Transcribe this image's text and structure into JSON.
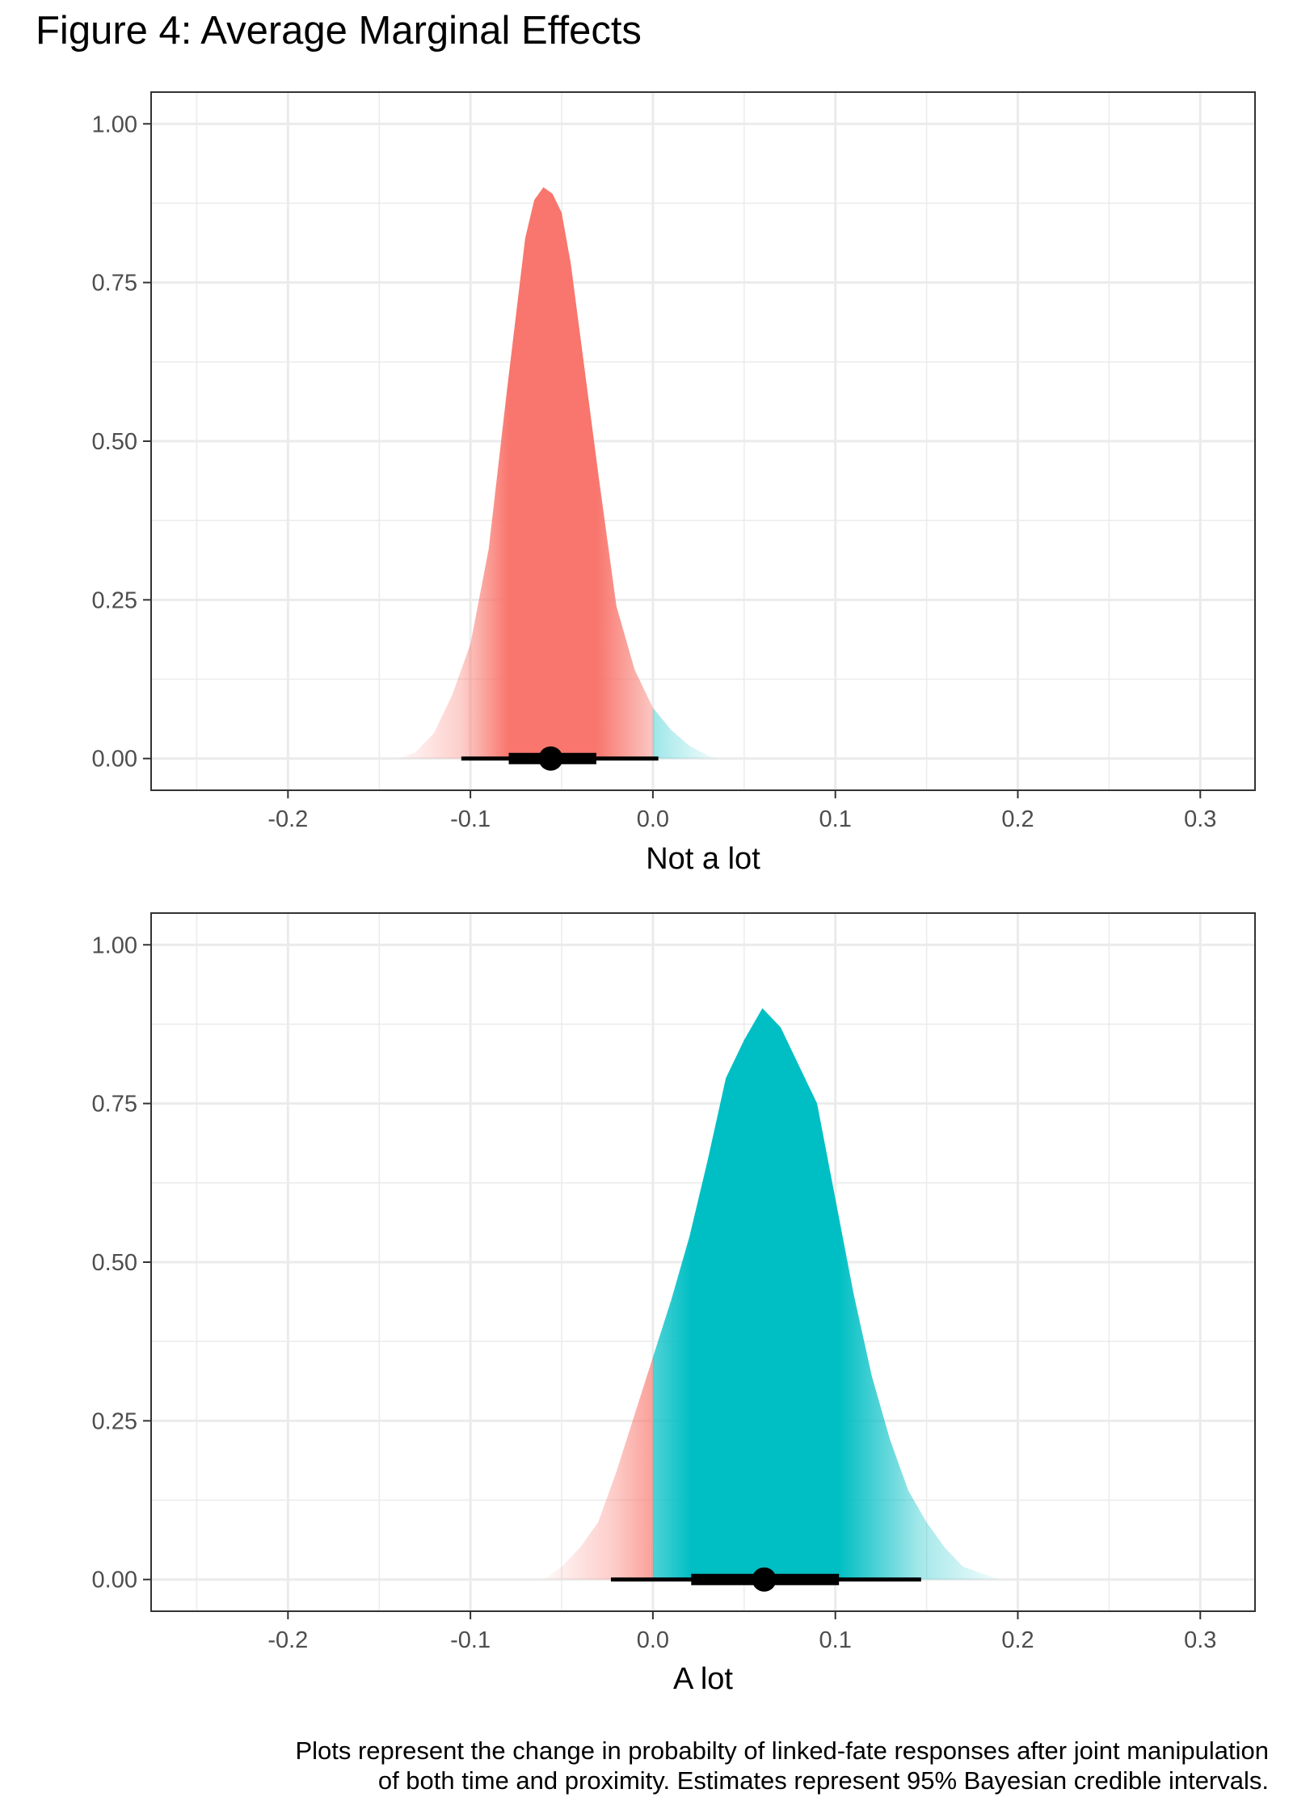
{
  "title": "Figure 4: Average Marginal Effects",
  "caption": {
    "line1": "Plots represent the change in probabilty of linked-fate responses after joint manipulation",
    "line2": "of both time and proximity. Estimates represent 95% Bayesian credible intervals."
  },
  "colors": {
    "negative": "#F8766D",
    "positive": "#00BFC4",
    "grid": "#ebebeb",
    "panel_border": "#333333"
  },
  "chart_data": [
    {
      "type": "area",
      "chart_kind": "posterior-density-halfeye",
      "xlabel": "Not a lot",
      "ylabel": "",
      "xlim": [
        -0.275,
        0.33
      ],
      "ylim": [
        -0.05,
        1.05
      ],
      "x_ticks": [
        -0.2,
        -0.1,
        0.0,
        0.1,
        0.2,
        0.3
      ],
      "x_tick_labels": [
        "-0.2",
        "-0.1",
        "0.0",
        "0.1",
        "0.2",
        "0.3"
      ],
      "y_ticks": [
        0,
        0.25,
        0.5,
        0.75,
        1.0
      ],
      "y_tick_labels": [
        "0.00",
        "0.25",
        "0.50",
        "0.75",
        "1.00"
      ],
      "grid": true,
      "fill_split_at": 0.0,
      "density": {
        "x": [
          -0.14,
          -0.13,
          -0.12,
          -0.11,
          -0.1,
          -0.09,
          -0.08,
          -0.07,
          -0.065,
          -0.06,
          -0.055,
          -0.05,
          -0.045,
          -0.04,
          -0.03,
          -0.02,
          -0.01,
          0.0,
          0.01,
          0.02,
          0.03,
          0.035
        ],
        "y": [
          0.0,
          0.01,
          0.04,
          0.1,
          0.18,
          0.33,
          0.58,
          0.82,
          0.88,
          0.9,
          0.89,
          0.86,
          0.78,
          0.67,
          0.45,
          0.24,
          0.14,
          0.08,
          0.045,
          0.02,
          0.005,
          0.0
        ]
      },
      "point_estimate": -0.056,
      "interval_66": [
        -0.079,
        -0.031
      ],
      "interval_95": [
        -0.105,
        0.003
      ]
    },
    {
      "type": "area",
      "chart_kind": "posterior-density-halfeye",
      "xlabel": "A lot",
      "ylabel": "",
      "xlim": [
        -0.275,
        0.33
      ],
      "ylim": [
        -0.05,
        1.05
      ],
      "x_ticks": [
        -0.2,
        -0.1,
        0.0,
        0.1,
        0.2,
        0.3
      ],
      "x_tick_labels": [
        "-0.2",
        "-0.1",
        "0.0",
        "0.1",
        "0.2",
        "0.3"
      ],
      "y_ticks": [
        0,
        0.25,
        0.5,
        0.75,
        1.0
      ],
      "y_tick_labels": [
        "0.00",
        "0.25",
        "0.50",
        "0.75",
        "1.00"
      ],
      "grid": true,
      "fill_split_at": 0.0,
      "density": {
        "x": [
          -0.06,
          -0.05,
          -0.04,
          -0.03,
          -0.02,
          -0.01,
          0.0,
          0.01,
          0.02,
          0.03,
          0.04,
          0.05,
          0.06,
          0.07,
          0.08,
          0.09,
          0.1,
          0.11,
          0.12,
          0.13,
          0.14,
          0.15,
          0.16,
          0.17,
          0.18,
          0.19
        ],
        "y": [
          0.0,
          0.02,
          0.05,
          0.09,
          0.17,
          0.26,
          0.35,
          0.44,
          0.54,
          0.66,
          0.79,
          0.85,
          0.9,
          0.87,
          0.81,
          0.75,
          0.6,
          0.45,
          0.32,
          0.22,
          0.14,
          0.09,
          0.05,
          0.02,
          0.01,
          0.0
        ]
      },
      "point_estimate": 0.061,
      "interval_66": [
        0.021,
        0.102
      ],
      "interval_95": [
        -0.023,
        0.147
      ]
    }
  ]
}
